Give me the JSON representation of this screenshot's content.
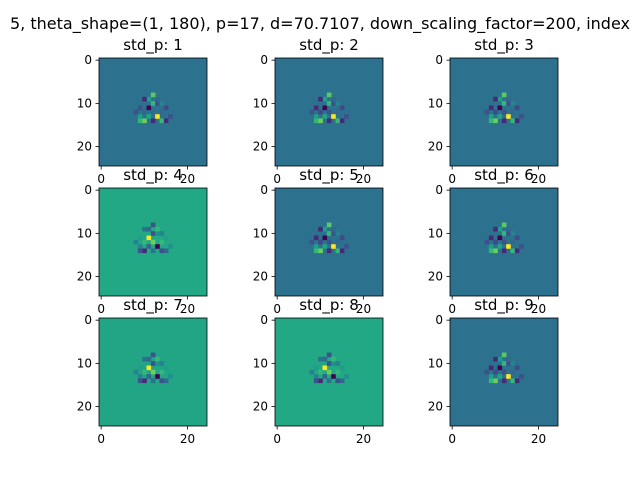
{
  "figure": {
    "suptitle": "5, theta_shape=(1, 180), p=17, d=70.7107, down_scaling_factor=200, index"
  },
  "chart_data": {
    "type": "heatmap",
    "grid": false,
    "colormap": "viridis",
    "image_size": [
      25,
      25
    ],
    "x_ticks": [
      0,
      20
    ],
    "y_ticks": [
      0,
      10,
      20
    ],
    "panels": [
      {
        "title": "std_p: 1",
        "background": "#2c728e",
        "pixels": [
          [
            11,
            11,
            "#440154"
          ],
          [
            12,
            12,
            "#2f6b8e"
          ],
          [
            13,
            13,
            "#fde725"
          ],
          [
            10,
            12,
            "#31688e"
          ],
          [
            12,
            10,
            "#35b779"
          ],
          [
            9,
            11,
            "#3b528b"
          ],
          [
            11,
            9,
            "#1f9e89"
          ],
          [
            13,
            10,
            "#3b528b"
          ],
          [
            10,
            14,
            "#6ece58"
          ],
          [
            14,
            12,
            "#31688e"
          ],
          [
            12,
            14,
            "#482878"
          ],
          [
            14,
            14,
            "#35b779"
          ],
          [
            9,
            13,
            "#1f9e89"
          ],
          [
            13,
            9,
            "#31688e"
          ],
          [
            11,
            13,
            "#20a486"
          ],
          [
            10,
            9,
            "#482878"
          ],
          [
            15,
            11,
            "#3e4a89"
          ],
          [
            9,
            14,
            "#35b779"
          ],
          [
            14,
            10,
            "#26828e"
          ],
          [
            15,
            14,
            "#482878"
          ],
          [
            8,
            12,
            "#3b528b"
          ],
          [
            12,
            8,
            "#5ec962"
          ],
          [
            16,
            13,
            "#3b528b"
          ]
        ]
      },
      {
        "title": "std_p: 2",
        "background": "#2c728e",
        "pixels": [
          [
            11,
            11,
            "#440154"
          ],
          [
            12,
            12,
            "#3b528b"
          ],
          [
            13,
            13,
            "#fde725"
          ],
          [
            10,
            12,
            "#3e4a89"
          ],
          [
            12,
            10,
            "#35b779"
          ],
          [
            9,
            11,
            "#482878"
          ],
          [
            11,
            9,
            "#1f9e89"
          ],
          [
            13,
            10,
            "#3b528b"
          ],
          [
            10,
            14,
            "#6ece58"
          ],
          [
            14,
            12,
            "#31688e"
          ],
          [
            12,
            14,
            "#482878"
          ],
          [
            14,
            14,
            "#35b779"
          ],
          [
            9,
            13,
            "#1f9e89"
          ],
          [
            13,
            9,
            "#31688e"
          ],
          [
            11,
            13,
            "#20a486"
          ],
          [
            10,
            9,
            "#482878"
          ],
          [
            15,
            11,
            "#3e4a89"
          ],
          [
            9,
            14,
            "#35b779"
          ],
          [
            14,
            10,
            "#26828e"
          ],
          [
            15,
            14,
            "#482878"
          ],
          [
            8,
            12,
            "#3b528b"
          ],
          [
            12,
            8,
            "#5ec962"
          ],
          [
            16,
            13,
            "#3b528b"
          ]
        ]
      },
      {
        "title": "std_p: 3",
        "background": "#2c728e",
        "pixels": [
          [
            11,
            11,
            "#440154"
          ],
          [
            12,
            12,
            "#3b528b"
          ],
          [
            13,
            13,
            "#fde725"
          ],
          [
            10,
            12,
            "#3e4a89"
          ],
          [
            12,
            10,
            "#35b779"
          ],
          [
            9,
            11,
            "#482878"
          ],
          [
            11,
            9,
            "#1f9e89"
          ],
          [
            13,
            10,
            "#3b528b"
          ],
          [
            10,
            14,
            "#6ece58"
          ],
          [
            14,
            12,
            "#31688e"
          ],
          [
            12,
            14,
            "#482878"
          ],
          [
            14,
            14,
            "#35b779"
          ],
          [
            9,
            13,
            "#1f9e89"
          ],
          [
            13,
            9,
            "#31688e"
          ],
          [
            11,
            13,
            "#20a486"
          ],
          [
            10,
            9,
            "#482878"
          ],
          [
            15,
            11,
            "#3e4a89"
          ],
          [
            9,
            14,
            "#35b779"
          ],
          [
            14,
            10,
            "#26828e"
          ],
          [
            15,
            14,
            "#482878"
          ],
          [
            8,
            12,
            "#3b528b"
          ],
          [
            12,
            8,
            "#5ec962"
          ],
          [
            16,
            13,
            "#3b528b"
          ]
        ]
      },
      {
        "title": "std_p: 4",
        "background": "#22a884",
        "pixels": [
          [
            11,
            11,
            "#fde725"
          ],
          [
            12,
            12,
            "#6ece58"
          ],
          [
            13,
            13,
            "#440154"
          ],
          [
            10,
            12,
            "#35b779"
          ],
          [
            12,
            10,
            "#3b528b"
          ],
          [
            9,
            11,
            "#1f9e89"
          ],
          [
            11,
            9,
            "#31688e"
          ],
          [
            13,
            10,
            "#21918c"
          ],
          [
            10,
            14,
            "#482878"
          ],
          [
            14,
            12,
            "#35b779"
          ],
          [
            12,
            14,
            "#2c728e"
          ],
          [
            14,
            14,
            "#3b528b"
          ],
          [
            9,
            13,
            "#26828e"
          ],
          [
            13,
            9,
            "#35b779"
          ],
          [
            11,
            13,
            "#31688e"
          ],
          [
            10,
            9,
            "#2c728e"
          ],
          [
            15,
            11,
            "#1f9e89"
          ],
          [
            9,
            14,
            "#3b528b"
          ],
          [
            14,
            10,
            "#26828e"
          ],
          [
            15,
            14,
            "#31688e"
          ],
          [
            8,
            12,
            "#26828e"
          ],
          [
            12,
            8,
            "#3b528b"
          ],
          [
            16,
            13,
            "#21918c"
          ]
        ]
      },
      {
        "title": "std_p: 5",
        "background": "#2c728e",
        "pixels": [
          [
            11,
            11,
            "#440154"
          ],
          [
            12,
            12,
            "#3b528b"
          ],
          [
            13,
            13,
            "#fde725"
          ],
          [
            10,
            12,
            "#3e4a89"
          ],
          [
            12,
            10,
            "#35b779"
          ],
          [
            9,
            11,
            "#482878"
          ],
          [
            11,
            9,
            "#1f9e89"
          ],
          [
            13,
            10,
            "#3b528b"
          ],
          [
            10,
            14,
            "#6ece58"
          ],
          [
            14,
            12,
            "#31688e"
          ],
          [
            12,
            14,
            "#482878"
          ],
          [
            14,
            14,
            "#35b779"
          ],
          [
            9,
            13,
            "#1f9e89"
          ],
          [
            13,
            9,
            "#31688e"
          ],
          [
            11,
            13,
            "#20a486"
          ],
          [
            10,
            9,
            "#482878"
          ],
          [
            15,
            11,
            "#3e4a89"
          ],
          [
            9,
            14,
            "#35b779"
          ],
          [
            14,
            10,
            "#26828e"
          ],
          [
            15,
            14,
            "#482878"
          ],
          [
            8,
            12,
            "#3b528b"
          ],
          [
            12,
            8,
            "#5ec962"
          ],
          [
            16,
            13,
            "#3b528b"
          ]
        ]
      },
      {
        "title": "std_p: 6",
        "background": "#2c728e",
        "pixels": [
          [
            11,
            11,
            "#440154"
          ],
          [
            12,
            12,
            "#3b528b"
          ],
          [
            13,
            13,
            "#fde725"
          ],
          [
            10,
            12,
            "#3e4a89"
          ],
          [
            12,
            10,
            "#35b779"
          ],
          [
            9,
            11,
            "#482878"
          ],
          [
            11,
            9,
            "#1f9e89"
          ],
          [
            13,
            10,
            "#3b528b"
          ],
          [
            10,
            14,
            "#6ece58"
          ],
          [
            14,
            12,
            "#31688e"
          ],
          [
            12,
            14,
            "#482878"
          ],
          [
            14,
            14,
            "#35b779"
          ],
          [
            9,
            13,
            "#1f9e89"
          ],
          [
            13,
            9,
            "#31688e"
          ],
          [
            11,
            13,
            "#20a486"
          ],
          [
            10,
            9,
            "#482878"
          ],
          [
            15,
            11,
            "#3e4a89"
          ],
          [
            9,
            14,
            "#35b779"
          ],
          [
            14,
            10,
            "#26828e"
          ],
          [
            15,
            14,
            "#482878"
          ],
          [
            8,
            12,
            "#3b528b"
          ],
          [
            12,
            8,
            "#5ec962"
          ],
          [
            16,
            13,
            "#3b528b"
          ]
        ]
      },
      {
        "title": "std_p: 7",
        "background": "#21a585",
        "pixels": [
          [
            11,
            11,
            "#fde725"
          ],
          [
            12,
            12,
            "#6ece58"
          ],
          [
            13,
            13,
            "#440154"
          ],
          [
            10,
            12,
            "#35b779"
          ],
          [
            12,
            10,
            "#3b528b"
          ],
          [
            9,
            11,
            "#1f9e89"
          ],
          [
            11,
            9,
            "#31688e"
          ],
          [
            13,
            10,
            "#21918c"
          ],
          [
            10,
            14,
            "#482878"
          ],
          [
            14,
            12,
            "#35b779"
          ],
          [
            12,
            14,
            "#2c728e"
          ],
          [
            14,
            14,
            "#3b528b"
          ],
          [
            9,
            13,
            "#26828e"
          ],
          [
            13,
            9,
            "#35b779"
          ],
          [
            11,
            13,
            "#31688e"
          ],
          [
            10,
            9,
            "#2c728e"
          ],
          [
            15,
            11,
            "#1f9e89"
          ],
          [
            9,
            14,
            "#3b528b"
          ],
          [
            14,
            10,
            "#26828e"
          ],
          [
            15,
            14,
            "#31688e"
          ],
          [
            8,
            12,
            "#26828e"
          ],
          [
            12,
            8,
            "#3b528b"
          ],
          [
            16,
            13,
            "#21918c"
          ]
        ]
      },
      {
        "title": "std_p: 8",
        "background": "#22a884",
        "pixels": [
          [
            11,
            11,
            "#fde725"
          ],
          [
            12,
            12,
            "#6ece58"
          ],
          [
            13,
            13,
            "#440154"
          ],
          [
            10,
            12,
            "#35b779"
          ],
          [
            12,
            10,
            "#3b528b"
          ],
          [
            9,
            11,
            "#1f9e89"
          ],
          [
            11,
            9,
            "#31688e"
          ],
          [
            13,
            10,
            "#21918c"
          ],
          [
            10,
            14,
            "#482878"
          ],
          [
            14,
            12,
            "#35b779"
          ],
          [
            12,
            14,
            "#2c728e"
          ],
          [
            14,
            14,
            "#3b528b"
          ],
          [
            9,
            13,
            "#26828e"
          ],
          [
            13,
            9,
            "#35b779"
          ],
          [
            11,
            13,
            "#31688e"
          ],
          [
            10,
            9,
            "#2c728e"
          ],
          [
            15,
            11,
            "#1f9e89"
          ],
          [
            9,
            14,
            "#3b528b"
          ],
          [
            14,
            10,
            "#26828e"
          ],
          [
            15,
            14,
            "#31688e"
          ],
          [
            8,
            12,
            "#26828e"
          ],
          [
            12,
            8,
            "#3b528b"
          ],
          [
            16,
            13,
            "#21918c"
          ]
        ]
      },
      {
        "title": "std_p: 9",
        "background": "#2c728e",
        "pixels": [
          [
            11,
            11,
            "#440154"
          ],
          [
            12,
            12,
            "#3b528b"
          ],
          [
            13,
            13,
            "#fde725"
          ],
          [
            10,
            12,
            "#3e4a89"
          ],
          [
            12,
            10,
            "#35b779"
          ],
          [
            9,
            11,
            "#482878"
          ],
          [
            11,
            9,
            "#1f9e89"
          ],
          [
            13,
            10,
            "#3b528b"
          ],
          [
            10,
            14,
            "#6ece58"
          ],
          [
            14,
            12,
            "#31688e"
          ],
          [
            12,
            14,
            "#482878"
          ],
          [
            14,
            14,
            "#35b779"
          ],
          [
            9,
            13,
            "#1f9e89"
          ],
          [
            13,
            9,
            "#31688e"
          ],
          [
            11,
            13,
            "#20a486"
          ],
          [
            10,
            9,
            "#482878"
          ],
          [
            15,
            11,
            "#3e4a89"
          ],
          [
            9,
            14,
            "#35b779"
          ],
          [
            14,
            10,
            "#26828e"
          ],
          [
            15,
            14,
            "#482878"
          ],
          [
            8,
            12,
            "#3b528b"
          ],
          [
            12,
            8,
            "#5ec962"
          ],
          [
            16,
            13,
            "#3b528b"
          ]
        ]
      }
    ]
  }
}
